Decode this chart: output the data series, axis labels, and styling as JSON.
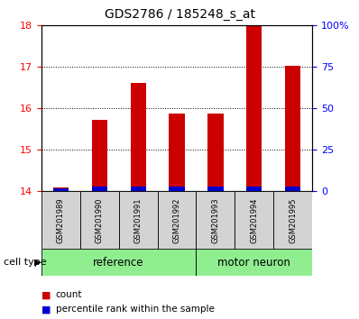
{
  "title": "GDS2786 / 185248_s_at",
  "samples": [
    "GSM201989",
    "GSM201990",
    "GSM201991",
    "GSM201992",
    "GSM201993",
    "GSM201994",
    "GSM201995"
  ],
  "count_values": [
    14.1,
    15.72,
    16.62,
    15.88,
    15.88,
    18.0,
    17.02
  ],
  "percentile_values": [
    2,
    3,
    3,
    3,
    3,
    3,
    3
  ],
  "ylim_left": [
    14,
    18
  ],
  "ylim_right": [
    0,
    100
  ],
  "yticks_left": [
    14,
    15,
    16,
    17,
    18
  ],
  "yticks_right": [
    0,
    25,
    50,
    75,
    100
  ],
  "ytick_labels_right": [
    "0",
    "25",
    "50",
    "75",
    "100%"
  ],
  "groups": [
    {
      "label": "reference",
      "indices": [
        0,
        1,
        2,
        3
      ],
      "color": "#90ee90"
    },
    {
      "label": "motor neuron",
      "indices": [
        4,
        5,
        6
      ],
      "color": "#90ee90"
    }
  ],
  "count_color": "#cc0000",
  "percentile_color": "#0000cc",
  "sample_bg_color": "#d3d3d3",
  "group_bg_color": "#90ee90",
  "legend_count_label": "count",
  "legend_percentile_label": "percentile rank within the sample",
  "cell_type_label": "cell type"
}
